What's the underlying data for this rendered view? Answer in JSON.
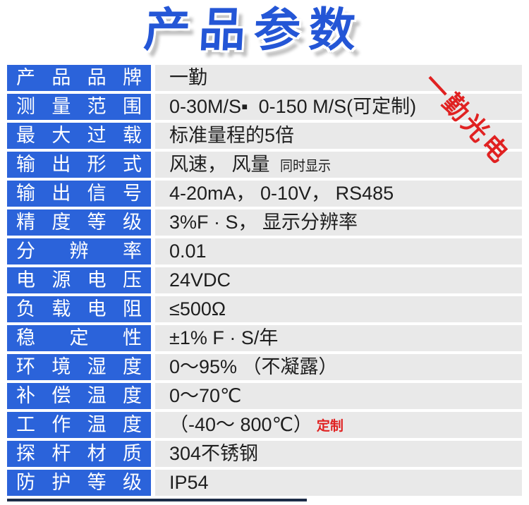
{
  "page": {
    "title": "产品参数",
    "watermark": "一勤光电"
  },
  "colors": {
    "title_blue": "#2456d6",
    "label_blue": "#2b63da",
    "row_gray": "#e9e9e9",
    "value_text": "#1e1e1e",
    "accent_red": "#e02121",
    "bottom_divider": "#1d2c47"
  },
  "table": {
    "rows": [
      {
        "label": "产品品牌",
        "value": "一勤",
        "note": "",
        "note_color": ""
      },
      {
        "label": "测量范围",
        "value": "0-30M/S▪  0-150 M/S(可定制)",
        "note": "",
        "note_color": ""
      },
      {
        "label": "最大过载",
        "value": "标准量程的5倍",
        "note": "",
        "note_color": ""
      },
      {
        "label": "输出形式",
        "value": "风速， 风量",
        "note": "同时显示",
        "note_color": "dark"
      },
      {
        "label": "输出信号",
        "value": "4-20mA， 0-10V， RS485",
        "note": "",
        "note_color": ""
      },
      {
        "label": "精度等级",
        "value": "3%F · S， 显示分辨率",
        "note": "",
        "note_color": ""
      },
      {
        "label": "分辨率",
        "value": "0.01",
        "note": "",
        "note_color": ""
      },
      {
        "label": "电源电压",
        "value": "24VDC",
        "note": "",
        "note_color": ""
      },
      {
        "label": "负载电阻",
        "value": "≤500Ω",
        "note": "",
        "note_color": ""
      },
      {
        "label": "稳定性",
        "value": "±1% F · S/年",
        "note": "",
        "note_color": ""
      },
      {
        "label": "环境湿度",
        "value": "0～95% （不凝露）",
        "note": "",
        "note_color": ""
      },
      {
        "label": "补偿温度",
        "value": "0～70℃",
        "note": "",
        "note_color": ""
      },
      {
        "label": "工作温度",
        "value": "（-40～ 800℃）",
        "note": "定制",
        "note_color": "red"
      },
      {
        "label": "探杆材质",
        "value": "304不锈钢",
        "note": "",
        "note_color": ""
      },
      {
        "label": "防护等级",
        "value": "IP54",
        "note": "",
        "note_color": ""
      }
    ]
  }
}
